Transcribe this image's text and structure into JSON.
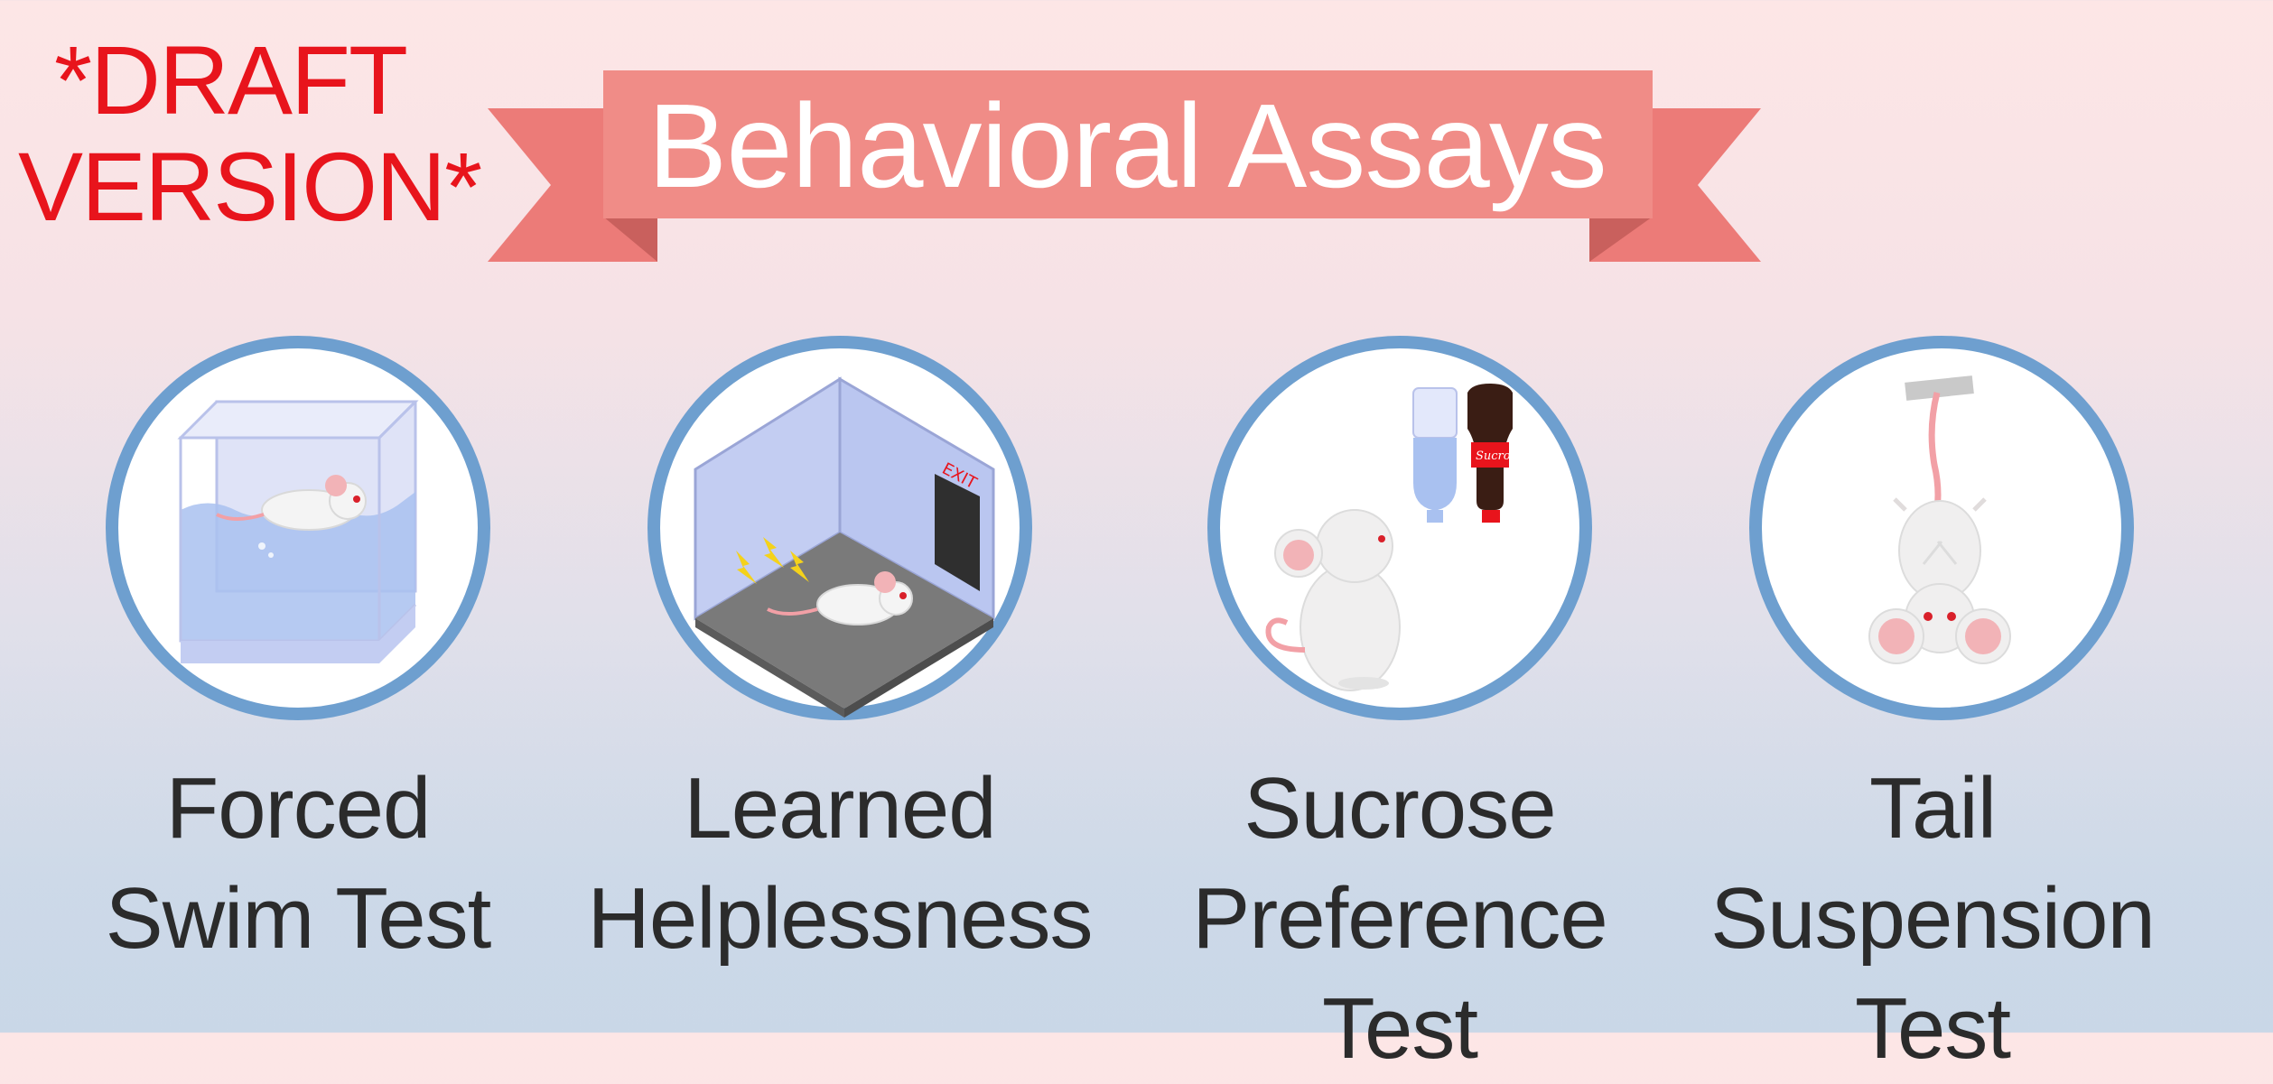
{
  "draft_notice": {
    "line1": "*DRAFT",
    "line2": "VERSION*"
  },
  "banner": {
    "title": "Behavioral Assays"
  },
  "colors": {
    "banner_main": "#f08c87",
    "banner_tail": "#ec7b78",
    "circle_ring": "#6e9fcf",
    "draft_text": "#e8141c",
    "label_text": "#2b2b2b"
  },
  "assays": [
    {
      "name_line1": "Forced",
      "name_line2": "Swim Test",
      "icon": "water-tank-mouse-icon"
    },
    {
      "name_line1": "Learned",
      "name_line2": "Helplessness",
      "icon": "shock-chamber-mouse-icon"
    },
    {
      "name_line1": "Sucrose",
      "name_line2": "Preference Test",
      "icon": "sucrose-bottles-mouse-icon",
      "exit_sign": "EXIT",
      "bottle_label": "Sucrose"
    },
    {
      "name_line1": "Tail Suspension",
      "name_line2": "Test",
      "icon": "hanging-mouse-icon"
    }
  ],
  "chamber": {
    "exit_sign": "EXIT"
  },
  "bottle": {
    "label": "Sucrose"
  }
}
